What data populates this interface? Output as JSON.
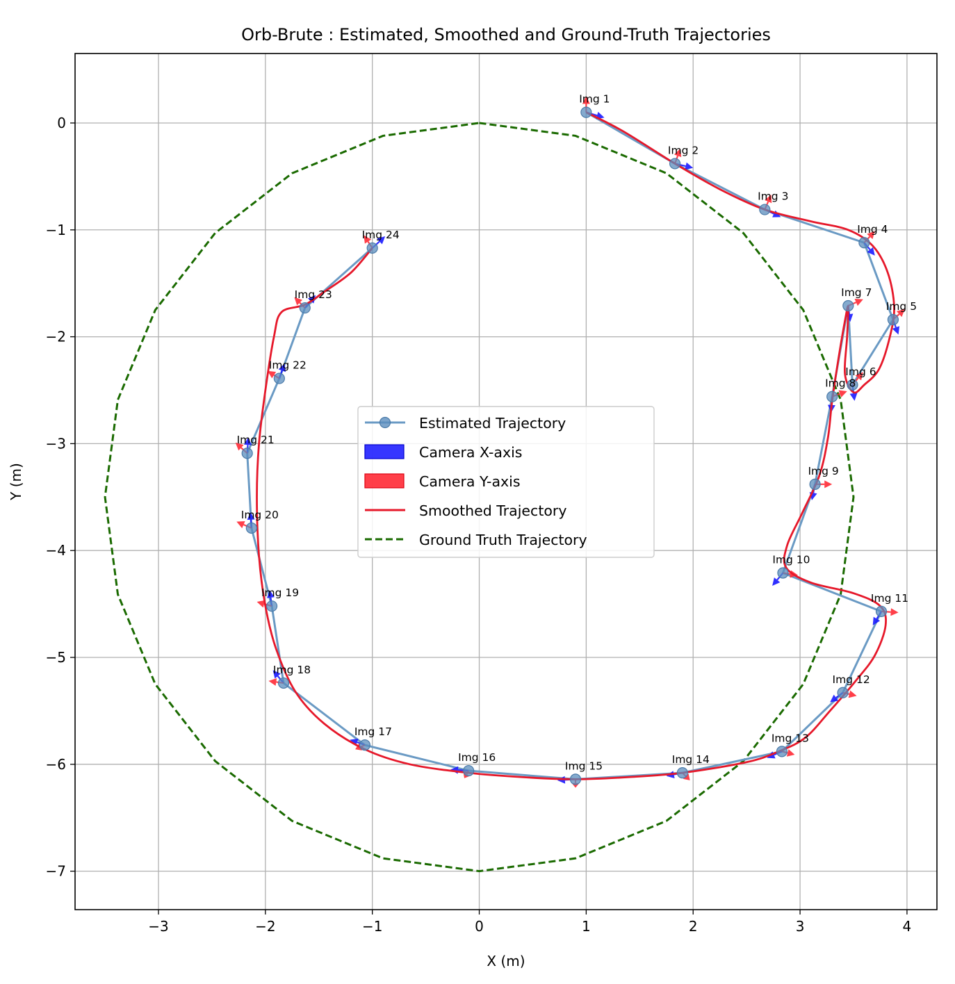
{
  "chart_data": {
    "type": "line",
    "title": "Orb-Brute : Estimated, Smoothed and Ground-Truth Trajectories",
    "xlabel": "X (m)",
    "ylabel": "Y (m)",
    "xlim": [
      -3.78,
      4.28
    ],
    "ylim": [
      -7.36,
      0.65
    ],
    "xticks": [
      -3,
      -2,
      -1,
      0,
      1,
      2,
      3,
      4
    ],
    "xtick_labels": [
      "−3",
      "−2",
      "−1",
      "0",
      "1",
      "2",
      "3",
      "4"
    ],
    "yticks": [
      0,
      -1,
      -2,
      -3,
      -4,
      -5,
      -6,
      -7
    ],
    "ytick_labels": [
      "0",
      "−1",
      "−2",
      "−3",
      "−4",
      "−5",
      "−6",
      "−7"
    ],
    "grid": true,
    "legend_position": "center",
    "legend": [
      "Estimated Trajectory",
      "Camera X-axis",
      "Camera Y-axis",
      "Smoothed Trajectory",
      "Ground Truth Trajectory"
    ],
    "colors": {
      "estimated": "#6a9ac4",
      "estimated_marker": "#5b8dbe",
      "camera_x": "#1a1aff",
      "camera_y": "#ff2a35",
      "smoothed": "#e6182a",
      "ground_truth": "#1a6a00",
      "grid": "#b0b0b0"
    },
    "estimated": {
      "name": "Estimated Trajectory",
      "points": [
        {
          "label": "Img 1",
          "x": 1.0,
          "y": 0.1
        },
        {
          "label": "Img 2",
          "x": 1.83,
          "y": -0.38
        },
        {
          "label": "Img 3",
          "x": 2.67,
          "y": -0.81
        },
        {
          "label": "Img 4",
          "x": 3.6,
          "y": -1.12
        },
        {
          "label": "Img 5",
          "x": 3.87,
          "y": -1.84
        },
        {
          "label": "Img 6",
          "x": 3.49,
          "y": -2.45
        },
        {
          "label": "Img 7",
          "x": 3.45,
          "y": -1.71
        },
        {
          "label": "Img 8",
          "x": 3.3,
          "y": -2.56
        },
        {
          "label": "Img 9",
          "x": 3.14,
          "y": -3.38
        },
        {
          "label": "Img 10",
          "x": 2.84,
          "y": -4.21
        },
        {
          "label": "Img 11",
          "x": 3.76,
          "y": -4.57
        },
        {
          "label": "Img 12",
          "x": 3.4,
          "y": -5.33
        },
        {
          "label": "Img 13",
          "x": 2.83,
          "y": -5.88
        },
        {
          "label": "Img 14",
          "x": 1.9,
          "y": -6.08
        },
        {
          "label": "Img 15",
          "x": 0.9,
          "y": -6.14
        },
        {
          "label": "Img 16",
          "x": -0.1,
          "y": -6.06
        },
        {
          "label": "Img 17",
          "x": -1.07,
          "y": -5.82
        },
        {
          "label": "Img 18",
          "x": -1.83,
          "y": -5.24
        },
        {
          "label": "Img 19",
          "x": -1.94,
          "y": -4.52
        },
        {
          "label": "Img 20",
          "x": -2.13,
          "y": -3.79
        },
        {
          "label": "Img 21",
          "x": -2.17,
          "y": -3.09
        },
        {
          "label": "Img 22",
          "x": -1.87,
          "y": -2.39
        },
        {
          "label": "Img 23",
          "x": -1.63,
          "y": -1.73
        },
        {
          "label": "Img 24",
          "x": -1.0,
          "y": -1.17
        }
      ]
    },
    "camera_x_axes": [
      [
        0.17,
        -0.05
      ],
      [
        0.17,
        -0.04
      ],
      [
        0.15,
        -0.07
      ],
      [
        0.1,
        -0.12
      ],
      [
        0.05,
        -0.14
      ],
      [
        0.02,
        -0.15
      ],
      [
        0.02,
        -0.15
      ],
      [
        -0.01,
        -0.15
      ],
      [
        -0.03,
        -0.15
      ],
      [
        -0.1,
        -0.12
      ],
      [
        -0.08,
        -0.13
      ],
      [
        -0.12,
        -0.09
      ],
      [
        -0.14,
        -0.06
      ],
      [
        -0.15,
        -0.03
      ],
      [
        -0.17,
        -0.01
      ],
      [
        -0.17,
        0.01
      ],
      [
        -0.14,
        0.05
      ],
      [
        -0.1,
        0.12
      ],
      [
        -0.02,
        0.15
      ],
      [
        -0.01,
        0.15
      ],
      [
        0.01,
        0.15
      ],
      [
        0.05,
        0.14
      ],
      [
        0.1,
        0.12
      ],
      [
        0.12,
        0.11
      ]
    ],
    "camera_y_axes": [
      [
        0.0,
        0.15
      ],
      [
        0.05,
        0.14
      ],
      [
        0.06,
        0.14
      ],
      [
        0.1,
        0.11
      ],
      [
        0.11,
        0.1
      ],
      [
        0.1,
        0.12
      ],
      [
        0.14,
        0.06
      ],
      [
        0.14,
        0.05
      ],
      [
        0.16,
        0.0
      ],
      [
        0.14,
        -0.02
      ],
      [
        0.16,
        -0.01
      ],
      [
        0.13,
        -0.03
      ],
      [
        0.12,
        -0.03
      ],
      [
        0.07,
        -0.07
      ],
      [
        0.0,
        -0.08
      ],
      [
        -0.04,
        -0.07
      ],
      [
        -0.09,
        -0.04
      ],
      [
        -0.14,
        0.02
      ],
      [
        -0.14,
        0.04
      ],
      [
        -0.14,
        0.06
      ],
      [
        -0.11,
        0.1
      ],
      [
        -0.11,
        0.07
      ],
      [
        -0.1,
        0.1
      ],
      [
        -0.08,
        0.12
      ]
    ],
    "smoothed": {
      "name": "Smoothed Trajectory",
      "points": [
        [
          1.0,
          0.1
        ],
        [
          1.35,
          -0.08
        ],
        [
          1.83,
          -0.38
        ],
        [
          2.25,
          -0.62
        ],
        [
          2.67,
          -0.81
        ],
        [
          3.1,
          -0.92
        ],
        [
          3.45,
          -1.0
        ],
        [
          3.68,
          -1.15
        ],
        [
          3.82,
          -1.4
        ],
        [
          3.88,
          -1.72
        ],
        [
          3.84,
          -2.0
        ],
        [
          3.74,
          -2.3
        ],
        [
          3.6,
          -2.45
        ],
        [
          3.5,
          -2.52
        ],
        [
          3.42,
          -2.35
        ],
        [
          3.44,
          -2.0
        ],
        [
          3.45,
          -1.72
        ],
        [
          3.42,
          -1.85
        ],
        [
          3.36,
          -2.2
        ],
        [
          3.3,
          -2.6
        ],
        [
          3.26,
          -2.95
        ],
        [
          3.18,
          -3.3
        ],
        [
          3.02,
          -3.65
        ],
        [
          2.88,
          -3.95
        ],
        [
          2.87,
          -4.16
        ],
        [
          3.1,
          -4.3
        ],
        [
          3.5,
          -4.4
        ],
        [
          3.75,
          -4.52
        ],
        [
          3.8,
          -4.7
        ],
        [
          3.7,
          -4.98
        ],
        [
          3.52,
          -5.22
        ],
        [
          3.28,
          -5.5
        ],
        [
          3.05,
          -5.75
        ],
        [
          2.8,
          -5.88
        ],
        [
          2.5,
          -5.98
        ],
        [
          1.9,
          -6.08
        ],
        [
          1.4,
          -6.12
        ],
        [
          0.9,
          -6.14
        ],
        [
          0.4,
          -6.12
        ],
        [
          -0.1,
          -6.08
        ],
        [
          -0.65,
          -6.0
        ],
        [
          -1.07,
          -5.86
        ],
        [
          -1.45,
          -5.62
        ],
        [
          -1.72,
          -5.32
        ],
        [
          -1.9,
          -4.92
        ],
        [
          -2.0,
          -4.52
        ],
        [
          -2.06,
          -4.05
        ],
        [
          -2.08,
          -3.5
        ],
        [
          -2.06,
          -3.0
        ],
        [
          -2.0,
          -2.5
        ],
        [
          -1.92,
          -2.0
        ],
        [
          -1.85,
          -1.77
        ],
        [
          -1.63,
          -1.7
        ],
        [
          -1.45,
          -1.58
        ],
        [
          -1.2,
          -1.4
        ],
        [
          -1.0,
          -1.17
        ]
      ]
    },
    "ground_truth": {
      "name": "Ground Truth Trajectory",
      "points": [
        [
          0.0,
          0.0
        ],
        [
          0.9,
          -0.12
        ],
        [
          1.75,
          -0.47
        ],
        [
          2.47,
          -1.03
        ],
        [
          3.03,
          -1.75
        ],
        [
          3.38,
          -2.59
        ],
        [
          3.5,
          -3.5
        ],
        [
          3.38,
          -4.41
        ],
        [
          3.03,
          -5.25
        ],
        [
          2.47,
          -5.97
        ],
        [
          1.75,
          -6.53
        ],
        [
          0.9,
          -6.88
        ],
        [
          0.0,
          -7.0
        ],
        [
          -0.9,
          -6.88
        ],
        [
          -1.75,
          -6.53
        ],
        [
          -2.47,
          -5.97
        ],
        [
          -3.03,
          -5.25
        ],
        [
          -3.38,
          -4.41
        ],
        [
          -3.5,
          -3.5
        ],
        [
          -3.38,
          -2.59
        ],
        [
          -3.03,
          -1.75
        ],
        [
          -2.47,
          -1.03
        ],
        [
          -1.75,
          -0.47
        ],
        [
          -0.9,
          -0.12
        ],
        [
          0.0,
          0.0
        ]
      ]
    }
  }
}
